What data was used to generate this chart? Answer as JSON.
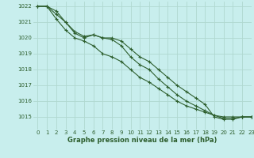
{
  "title": "Graphe pression niveau de la mer (hPa)",
  "background_color": "#c8eeed",
  "grid_color": "#b0d8d0",
  "line_color": "#2d5e2d",
  "xlim": [
    -0.5,
    23
  ],
  "ylim": [
    1014.2,
    1022.3
  ],
  "yticks": [
    1015,
    1016,
    1017,
    1018,
    1019,
    1020,
    1021,
    1022
  ],
  "xticks": [
    0,
    1,
    2,
    3,
    4,
    5,
    6,
    7,
    8,
    9,
    10,
    11,
    12,
    13,
    14,
    15,
    16,
    17,
    18,
    19,
    20,
    21,
    22,
    23
  ],
  "series": [
    [
      1022.0,
      1022.0,
      1021.7,
      1021.0,
      1020.3,
      1020.0,
      1020.2,
      1020.0,
      1020.0,
      1019.8,
      1019.3,
      1018.8,
      1018.5,
      1018.0,
      1017.5,
      1017.0,
      1016.6,
      1016.2,
      1015.8,
      1015.0,
      1014.85,
      1014.85,
      1015.0,
      1015.0
    ],
    [
      1022.0,
      1022.0,
      1021.2,
      1020.5,
      1020.0,
      1019.8,
      1019.5,
      1019.0,
      1018.8,
      1018.5,
      1018.0,
      1017.5,
      1017.2,
      1016.8,
      1016.4,
      1016.0,
      1015.7,
      1015.5,
      1015.3,
      1015.1,
      1015.0,
      1015.0,
      1015.0,
      1015.0
    ],
    [
      1022.0,
      1022.0,
      1021.5,
      1021.0,
      1020.4,
      1020.1,
      1020.2,
      1020.0,
      1019.9,
      1019.5,
      1018.8,
      1018.3,
      1018.0,
      1017.4,
      1016.9,
      1016.4,
      1016.0,
      1015.7,
      1015.4,
      1015.1,
      1014.9,
      1014.9,
      1015.0,
      1015.0
    ]
  ]
}
